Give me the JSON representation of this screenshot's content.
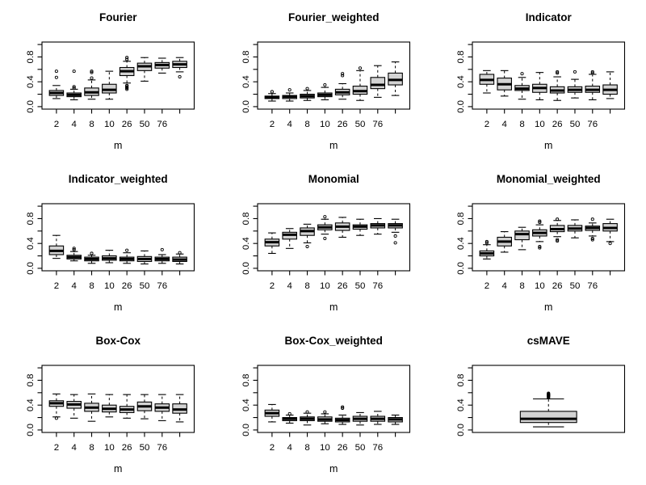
{
  "figure": {
    "background": "#ffffff",
    "box_fill": "#d3d3d3",
    "stroke": "#000000"
  },
  "chart_data": [
    {
      "type": "boxplot",
      "title": "Fourier",
      "xlabel": "m",
      "ylim": [
        0,
        1
      ],
      "yticks": [
        0,
        0.2,
        0.4,
        0.6,
        0.8,
        1.0
      ],
      "ytick_labels": [
        {
          "v": 0,
          "label": "0.0"
        },
        {
          "v": 0.4,
          "label": "0.4"
        },
        {
          "v": 0.8,
          "label": "0.8"
        }
      ],
      "categories": [
        "2",
        "4",
        "8",
        "10",
        "26",
        "50",
        "76",
        ""
      ],
      "boxes": [
        {
          "whislo": 0.13,
          "q1": 0.18,
          "med": 0.22,
          "q3": 0.26,
          "whishi": 0.34,
          "outliers": [
            0.47,
            0.57
          ]
        },
        {
          "whislo": 0.11,
          "q1": 0.16,
          "med": 0.19,
          "q3": 0.22,
          "whishi": 0.28,
          "outliers": [
            0.3,
            0.32,
            0.57
          ]
        },
        {
          "whislo": 0.12,
          "q1": 0.18,
          "med": 0.23,
          "q3": 0.3,
          "whishi": 0.43,
          "outliers": [
            0.46,
            0.55,
            0.57
          ]
        },
        {
          "whislo": 0.12,
          "q1": 0.22,
          "med": 0.27,
          "q3": 0.36,
          "whishi": 0.57,
          "outliers": []
        },
        {
          "whislo": 0.38,
          "q1": 0.5,
          "med": 0.57,
          "q3": 0.63,
          "whishi": 0.73,
          "outliers": [
            0.28,
            0.3,
            0.31,
            0.33,
            0.34,
            0.76,
            0.79
          ]
        },
        {
          "whislo": 0.41,
          "q1": 0.58,
          "med": 0.65,
          "q3": 0.7,
          "whishi": 0.79,
          "outliers": []
        },
        {
          "whislo": 0.54,
          "q1": 0.62,
          "med": 0.67,
          "q3": 0.71,
          "whishi": 0.78,
          "outliers": []
        },
        {
          "whislo": 0.56,
          "q1": 0.63,
          "med": 0.68,
          "q3": 0.73,
          "whishi": 0.79,
          "outliers": [
            0.48
          ]
        }
      ]
    },
    {
      "type": "boxplot",
      "title": "Fourier_weighted",
      "xlabel": "m",
      "ylim": [
        0,
        1
      ],
      "yticks": [
        0,
        0.2,
        0.4,
        0.6,
        0.8,
        1.0
      ],
      "ytick_labels": [
        {
          "v": 0,
          "label": "0.0"
        },
        {
          "v": 0.4,
          "label": "0.4"
        },
        {
          "v": 0.8,
          "label": "0.8"
        }
      ],
      "categories": [
        "2",
        "4",
        "8",
        "10",
        "26",
        "50",
        "76",
        ""
      ],
      "boxes": [
        {
          "whislo": 0.09,
          "q1": 0.13,
          "med": 0.15,
          "q3": 0.17,
          "whishi": 0.21,
          "outliers": [
            0.24
          ]
        },
        {
          "whislo": 0.09,
          "q1": 0.13,
          "med": 0.16,
          "q3": 0.18,
          "whishi": 0.22,
          "outliers": [
            0.27
          ]
        },
        {
          "whislo": 0.1,
          "q1": 0.14,
          "med": 0.17,
          "q3": 0.2,
          "whishi": 0.26,
          "outliers": [
            0.29
          ]
        },
        {
          "whislo": 0.11,
          "q1": 0.16,
          "med": 0.19,
          "q3": 0.22,
          "whishi": 0.31,
          "outliers": [
            0.35
          ]
        },
        {
          "whislo": 0.12,
          "q1": 0.19,
          "med": 0.23,
          "q3": 0.28,
          "whishi": 0.37,
          "outliers": [
            0.5,
            0.53
          ]
        },
        {
          "whislo": 0.1,
          "q1": 0.2,
          "med": 0.25,
          "q3": 0.33,
          "whishi": 0.58,
          "outliers": [
            0.62
          ]
        },
        {
          "whislo": 0.15,
          "q1": 0.29,
          "med": 0.35,
          "q3": 0.47,
          "whishi": 0.66,
          "outliers": []
        },
        {
          "whislo": 0.18,
          "q1": 0.35,
          "med": 0.43,
          "q3": 0.54,
          "whishi": 0.72,
          "outliers": []
        }
      ]
    },
    {
      "type": "boxplot",
      "title": "Indicator",
      "xlabel": "m",
      "ylim": [
        0,
        1
      ],
      "yticks": [
        0,
        0.2,
        0.4,
        0.6,
        0.8,
        1.0
      ],
      "ytick_labels": [
        {
          "v": 0,
          "label": "0.0"
        },
        {
          "v": 0.4,
          "label": "0.4"
        },
        {
          "v": 0.8,
          "label": "0.8"
        }
      ],
      "categories": [
        "2",
        "4",
        "8",
        "10",
        "26",
        "50",
        "76",
        ""
      ],
      "boxes": [
        {
          "whislo": 0.22,
          "q1": 0.36,
          "med": 0.43,
          "q3": 0.52,
          "whishi": 0.58,
          "outliers": []
        },
        {
          "whislo": 0.17,
          "q1": 0.27,
          "med": 0.36,
          "q3": 0.46,
          "whishi": 0.58,
          "outliers": []
        },
        {
          "whislo": 0.12,
          "q1": 0.26,
          "med": 0.29,
          "q3": 0.34,
          "whishi": 0.47,
          "outliers": [
            0.53
          ]
        },
        {
          "whislo": 0.11,
          "q1": 0.23,
          "med": 0.3,
          "q3": 0.36,
          "whishi": 0.55,
          "outliers": []
        },
        {
          "whislo": 0.1,
          "q1": 0.22,
          "med": 0.26,
          "q3": 0.32,
          "whishi": 0.48,
          "outliers": [
            0.54,
            0.56
          ]
        },
        {
          "whislo": 0.14,
          "q1": 0.23,
          "med": 0.27,
          "q3": 0.32,
          "whishi": 0.44,
          "outliers": [
            0.56
          ]
        },
        {
          "whislo": 0.11,
          "q1": 0.23,
          "med": 0.27,
          "q3": 0.33,
          "whishi": 0.52,
          "outliers": [
            0.54,
            0.56
          ]
        },
        {
          "whislo": 0.13,
          "q1": 0.2,
          "med": 0.27,
          "q3": 0.35,
          "whishi": 0.56,
          "outliers": []
        }
      ]
    },
    {
      "type": "boxplot",
      "title": "Indicator_weighted",
      "xlabel": "m",
      "ylim": [
        0,
        1
      ],
      "yticks": [
        0,
        0.2,
        0.4,
        0.6,
        0.8,
        1.0
      ],
      "ytick_labels": [
        {
          "v": 0,
          "label": "0.0"
        },
        {
          "v": 0.4,
          "label": "0.4"
        },
        {
          "v": 0.8,
          "label": "0.8"
        }
      ],
      "categories": [
        "2",
        "4",
        "8",
        "10",
        "26",
        "50",
        "76",
        ""
      ],
      "boxes": [
        {
          "whislo": 0.16,
          "q1": 0.22,
          "med": 0.28,
          "q3": 0.36,
          "whishi": 0.53,
          "outliers": []
        },
        {
          "whislo": 0.12,
          "q1": 0.15,
          "med": 0.18,
          "q3": 0.21,
          "whishi": 0.27,
          "outliers": [
            0.3,
            0.32
          ]
        },
        {
          "whislo": 0.08,
          "q1": 0.12,
          "med": 0.15,
          "q3": 0.18,
          "whishi": 0.21,
          "outliers": [
            0.24
          ]
        },
        {
          "whislo": 0.09,
          "q1": 0.13,
          "med": 0.16,
          "q3": 0.2,
          "whishi": 0.29,
          "outliers": []
        },
        {
          "whislo": 0.08,
          "q1": 0.12,
          "med": 0.15,
          "q3": 0.18,
          "whishi": 0.25,
          "outliers": [
            0.29
          ]
        },
        {
          "whislo": 0.07,
          "q1": 0.11,
          "med": 0.15,
          "q3": 0.19,
          "whishi": 0.28,
          "outliers": []
        },
        {
          "whislo": 0.08,
          "q1": 0.12,
          "med": 0.15,
          "q3": 0.18,
          "whishi": 0.22,
          "outliers": [
            0.3
          ]
        },
        {
          "whislo": 0.07,
          "q1": 0.11,
          "med": 0.14,
          "q3": 0.18,
          "whishi": 0.23,
          "outliers": [
            0.25
          ]
        }
      ]
    },
    {
      "type": "boxplot",
      "title": "Monomial",
      "xlabel": "m",
      "ylim": [
        0,
        1
      ],
      "yticks": [
        0,
        0.2,
        0.4,
        0.6,
        0.8,
        1.0
      ],
      "ytick_labels": [
        {
          "v": 0,
          "label": "0.0"
        },
        {
          "v": 0.4,
          "label": "0.4"
        },
        {
          "v": 0.8,
          "label": "0.8"
        }
      ],
      "categories": [
        "2",
        "4",
        "8",
        "10",
        "26",
        "50",
        "76",
        ""
      ],
      "boxes": [
        {
          "whislo": 0.24,
          "q1": 0.36,
          "med": 0.42,
          "q3": 0.47,
          "whishi": 0.57,
          "outliers": []
        },
        {
          "whislo": 0.32,
          "q1": 0.47,
          "med": 0.54,
          "q3": 0.58,
          "whishi": 0.64,
          "outliers": []
        },
        {
          "whislo": 0.41,
          "q1": 0.53,
          "med": 0.6,
          "q3": 0.65,
          "whishi": 0.71,
          "outliers": [
            0.35
          ]
        },
        {
          "whislo": 0.55,
          "q1": 0.62,
          "med": 0.66,
          "q3": 0.7,
          "whishi": 0.79,
          "outliers": [
            0.48,
            0.83
          ]
        },
        {
          "whislo": 0.5,
          "q1": 0.61,
          "med": 0.67,
          "q3": 0.73,
          "whishi": 0.82,
          "outliers": []
        },
        {
          "whislo": 0.53,
          "q1": 0.63,
          "med": 0.67,
          "q3": 0.7,
          "whishi": 0.79,
          "outliers": []
        },
        {
          "whislo": 0.55,
          "q1": 0.65,
          "med": 0.69,
          "q3": 0.72,
          "whishi": 0.8,
          "outliers": []
        },
        {
          "whislo": 0.58,
          "q1": 0.65,
          "med": 0.69,
          "q3": 0.72,
          "whishi": 0.79,
          "outliers": [
            0.41,
            0.52
          ]
        }
      ]
    },
    {
      "type": "boxplot",
      "title": "Monomial_weighted",
      "xlabel": "m",
      "ylim": [
        0,
        1
      ],
      "yticks": [
        0,
        0.2,
        0.4,
        0.6,
        0.8,
        1.0
      ],
      "ytick_labels": [
        {
          "v": 0,
          "label": "0.0"
        },
        {
          "v": 0.4,
          "label": "0.4"
        },
        {
          "v": 0.8,
          "label": "0.8"
        }
      ],
      "categories": [
        "2",
        "4",
        "8",
        "10",
        "26",
        "50",
        "76",
        ""
      ],
      "boxes": [
        {
          "whislo": 0.15,
          "q1": 0.2,
          "med": 0.24,
          "q3": 0.28,
          "whishi": 0.38,
          "outliers": [
            0.41,
            0.43
          ]
        },
        {
          "whislo": 0.26,
          "q1": 0.36,
          "med": 0.43,
          "q3": 0.5,
          "whishi": 0.59,
          "outliers": []
        },
        {
          "whislo": 0.3,
          "q1": 0.46,
          "med": 0.55,
          "q3": 0.6,
          "whishi": 0.66,
          "outliers": []
        },
        {
          "whislo": 0.43,
          "q1": 0.52,
          "med": 0.57,
          "q3": 0.62,
          "whishi": 0.7,
          "outliers": [
            0.33,
            0.35,
            0.74,
            0.76
          ]
        },
        {
          "whislo": 0.51,
          "q1": 0.59,
          "med": 0.63,
          "q3": 0.69,
          "whishi": 0.77,
          "outliers": [
            0.44,
            0.46,
            0.79
          ]
        },
        {
          "whislo": 0.49,
          "q1": 0.6,
          "med": 0.64,
          "q3": 0.69,
          "whishi": 0.78,
          "outliers": []
        },
        {
          "whislo": 0.52,
          "q1": 0.61,
          "med": 0.65,
          "q3": 0.68,
          "whishi": 0.73,
          "outliers": [
            0.46,
            0.48,
            0.79
          ]
        },
        {
          "whislo": 0.43,
          "q1": 0.6,
          "med": 0.65,
          "q3": 0.72,
          "whishi": 0.79,
          "outliers": [
            0.4
          ]
        }
      ]
    },
    {
      "type": "boxplot",
      "title": "Box-Cox",
      "xlabel": "m",
      "ylim": [
        0,
        1
      ],
      "yticks": [
        0,
        0.2,
        0.4,
        0.6,
        0.8,
        1.0
      ],
      "ytick_labels": [
        {
          "v": 0,
          "label": "0.0"
        },
        {
          "v": 0.4,
          "label": "0.4"
        },
        {
          "v": 0.8,
          "label": "0.8"
        }
      ],
      "categories": [
        "2",
        "4",
        "8",
        "10",
        "26",
        "50",
        "76",
        ""
      ],
      "boxes": [
        {
          "whislo": 0.21,
          "q1": 0.38,
          "med": 0.43,
          "q3": 0.47,
          "whishi": 0.58,
          "outliers": [
            0.19
          ]
        },
        {
          "whislo": 0.19,
          "q1": 0.35,
          "med": 0.41,
          "q3": 0.46,
          "whishi": 0.57,
          "outliers": []
        },
        {
          "whislo": 0.14,
          "q1": 0.3,
          "med": 0.36,
          "q3": 0.43,
          "whishi": 0.58,
          "outliers": []
        },
        {
          "whislo": 0.21,
          "q1": 0.29,
          "med": 0.34,
          "q3": 0.4,
          "whishi": 0.57,
          "outliers": []
        },
        {
          "whislo": 0.19,
          "q1": 0.28,
          "med": 0.33,
          "q3": 0.38,
          "whishi": 0.57,
          "outliers": []
        },
        {
          "whislo": 0.18,
          "q1": 0.31,
          "med": 0.38,
          "q3": 0.45,
          "whishi": 0.57,
          "outliers": []
        },
        {
          "whislo": 0.15,
          "q1": 0.3,
          "med": 0.36,
          "q3": 0.42,
          "whishi": 0.57,
          "outliers": []
        },
        {
          "whislo": 0.13,
          "q1": 0.27,
          "med": 0.33,
          "q3": 0.42,
          "whishi": 0.57,
          "outliers": []
        }
      ]
    },
    {
      "type": "boxplot",
      "title": "Box-Cox_weighted",
      "xlabel": "m",
      "ylim": [
        0,
        1
      ],
      "yticks": [
        0,
        0.2,
        0.4,
        0.6,
        0.8,
        1.0
      ],
      "ytick_labels": [
        {
          "v": 0,
          "label": "0.0"
        },
        {
          "v": 0.4,
          "label": "0.4"
        },
        {
          "v": 0.8,
          "label": "0.8"
        }
      ],
      "categories": [
        "2",
        "4",
        "8",
        "10",
        "26",
        "50",
        "76",
        ""
      ],
      "boxes": [
        {
          "whislo": 0.13,
          "q1": 0.22,
          "med": 0.27,
          "q3": 0.32,
          "whishi": 0.41,
          "outliers": []
        },
        {
          "whislo": 0.11,
          "q1": 0.15,
          "med": 0.18,
          "q3": 0.2,
          "whishi": 0.24,
          "outliers": [
            0.26
          ]
        },
        {
          "whislo": 0.08,
          "q1": 0.15,
          "med": 0.18,
          "q3": 0.21,
          "whishi": 0.27,
          "outliers": [
            0.29
          ]
        },
        {
          "whislo": 0.1,
          "q1": 0.14,
          "med": 0.17,
          "q3": 0.21,
          "whishi": 0.26,
          "outliers": [
            0.29
          ]
        },
        {
          "whislo": 0.09,
          "q1": 0.13,
          "med": 0.16,
          "q3": 0.19,
          "whishi": 0.24,
          "outliers": [
            0.35,
            0.37
          ]
        },
        {
          "whislo": 0.08,
          "q1": 0.14,
          "med": 0.18,
          "q3": 0.22,
          "whishi": 0.28,
          "outliers": []
        },
        {
          "whislo": 0.09,
          "q1": 0.14,
          "med": 0.18,
          "q3": 0.22,
          "whishi": 0.3,
          "outliers": []
        },
        {
          "whislo": 0.09,
          "q1": 0.13,
          "med": 0.17,
          "q3": 0.2,
          "whishi": 0.24,
          "outliers": []
        }
      ]
    },
    {
      "type": "boxplot",
      "title": "csMAVE",
      "xlabel": "",
      "ylim": [
        0,
        1
      ],
      "yticks": [
        0,
        0.2,
        0.4,
        0.6,
        0.8,
        1.0
      ],
      "ytick_labels": [
        {
          "v": 0,
          "label": "0.0"
        },
        {
          "v": 0.4,
          "label": "0.4"
        },
        {
          "v": 0.8,
          "label": "0.8"
        }
      ],
      "categories": [
        ""
      ],
      "boxes": [
        {
          "whislo": 0.05,
          "q1": 0.12,
          "med": 0.18,
          "q3": 0.3,
          "whishi": 0.5,
          "outliers": [
            0.52,
            0.53,
            0.54,
            0.55,
            0.555,
            0.56,
            0.565,
            0.57,
            0.58,
            0.59
          ]
        }
      ]
    }
  ]
}
